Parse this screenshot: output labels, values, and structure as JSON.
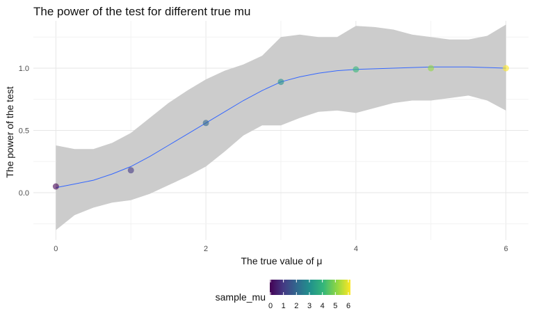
{
  "chart_data": {
    "type": "scatter",
    "title": "The power of the test for different true mu",
    "xlabel": "The true value of μ",
    "ylabel": "The power of the test",
    "xlim": [
      -0.3,
      6.3
    ],
    "ylim": [
      -0.38,
      1.38
    ],
    "x_ticks": [
      0,
      2,
      4,
      6
    ],
    "x_tick_labels": [
      "0",
      "2",
      "4",
      "6"
    ],
    "y_ticks": [
      0.0,
      0.5,
      1.0
    ],
    "y_tick_labels": [
      "0.0",
      "0.5",
      "1.0"
    ],
    "grid": true,
    "points": {
      "x": [
        0,
        1,
        2,
        3,
        4,
        5,
        6
      ],
      "y": [
        0.05,
        0.18,
        0.56,
        0.89,
        0.99,
        1.0,
        1.0
      ],
      "color": [
        "#440154",
        "#443983",
        "#31688e",
        "#21918c",
        "#35b779",
        "#90d743",
        "#fde725"
      ]
    },
    "smooth_fit": {
      "x": [
        0,
        0.25,
        0.5,
        0.75,
        1,
        1.25,
        1.5,
        1.75,
        2,
        2.25,
        2.5,
        2.75,
        3,
        3.25,
        3.5,
        3.75,
        4,
        4.25,
        4.5,
        4.75,
        5,
        5.25,
        5.5,
        5.75,
        6
      ],
      "y": [
        0.04,
        0.07,
        0.1,
        0.15,
        0.21,
        0.29,
        0.38,
        0.47,
        0.56,
        0.65,
        0.74,
        0.82,
        0.89,
        0.93,
        0.96,
        0.98,
        0.99,
        0.995,
        1.0,
        1.005,
        1.01,
        1.01,
        1.01,
        1.005,
        1.0
      ],
      "lower": [
        -0.3,
        -0.18,
        -0.12,
        -0.08,
        -0.06,
        -0.01,
        0.06,
        0.13,
        0.21,
        0.33,
        0.46,
        0.54,
        0.54,
        0.6,
        0.65,
        0.66,
        0.64,
        0.68,
        0.72,
        0.74,
        0.74,
        0.76,
        0.78,
        0.74,
        0.66
      ],
      "upper": [
        0.38,
        0.35,
        0.35,
        0.4,
        0.48,
        0.6,
        0.72,
        0.82,
        0.91,
        0.98,
        1.03,
        1.1,
        1.25,
        1.27,
        1.25,
        1.25,
        1.34,
        1.33,
        1.31,
        1.27,
        1.25,
        1.23,
        1.23,
        1.26,
        1.35
      ],
      "line_color": "#3366ff",
      "band_color": "#cccccc"
    },
    "legend": {
      "title": "sample_mu",
      "position": "bottom",
      "type": "colorbar",
      "min": 0,
      "max": 6,
      "tick_labels": [
        "0",
        "1",
        "2",
        "3",
        "4",
        "5",
        "6"
      ],
      "colors": [
        "#440154",
        "#443983",
        "#31688e",
        "#21918c",
        "#35b779",
        "#90d743",
        "#fde725"
      ]
    }
  }
}
